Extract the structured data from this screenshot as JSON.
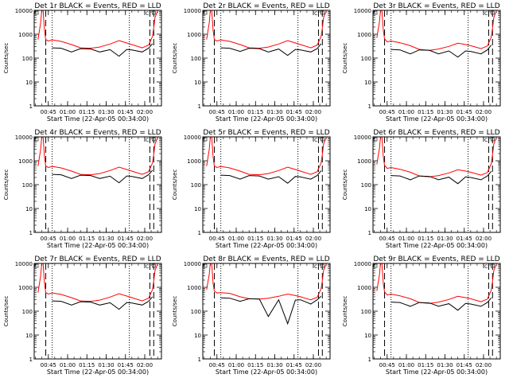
{
  "chart_data": {
    "type": "line",
    "layout": "3x3 grid",
    "ylabel": "Counts/sec",
    "xlabel": "Start Time (22-Apr-05 00:34:00)",
    "x_start": "00:34:00",
    "x_end": "02:13:00",
    "x_ticks": [
      "00:45",
      "01:00",
      "01:15",
      "01:30",
      "01:45",
      "02:00"
    ],
    "y_scale": "log",
    "ylim": [
      1,
      10000
    ],
    "y_ticks": [
      "1",
      "10",
      "100",
      "1000",
      "10000"
    ],
    "colors": {
      "events": "#000000",
      "lld": "#ff0000"
    },
    "markers": {
      "dashed": [
        "00:43",
        "02:04",
        "02:07"
      ],
      "dotted": [
        "00:48",
        "01:48"
      ],
      "small_box_label": "C"
    },
    "time": [
      "00:37",
      "00:39",
      "00:40",
      "00:41",
      "00:42",
      "00:43",
      "00:45",
      "00:48",
      "00:55",
      "01:03",
      "01:10",
      "01:18",
      "01:25",
      "01:33",
      "01:40",
      "01:46",
      "01:50",
      "01:58",
      "02:03",
      "02:06",
      "02:07",
      "02:08",
      "02:10",
      "02:11"
    ],
    "panels": [
      {
        "title": "Det 1r BLACK = Events, RED = LLD",
        "lld": [
          600,
          3000,
          12000,
          9000,
          1500,
          600,
          520,
          580,
          500,
          370,
          270,
          260,
          290,
          390,
          540,
          430,
          370,
          270,
          350,
          800,
          1800,
          5000,
          9500,
          12000
        ],
        "events": [
          null,
          null,
          null,
          null,
          null,
          null,
          null,
          270,
          260,
          180,
          250,
          240,
          180,
          225,
          120,
          230,
          220,
          180,
          260,
          400,
          null,
          null,
          null,
          null
        ]
      },
      {
        "title": "Det 2r BLACK = Events, RED = LLD",
        "lld": [
          600,
          3000,
          12000,
          9000,
          1500,
          600,
          520,
          580,
          500,
          370,
          270,
          260,
          290,
          390,
          540,
          430,
          370,
          270,
          350,
          800,
          1800,
          5000,
          9500,
          12000
        ],
        "events": [
          null,
          null,
          null,
          null,
          null,
          null,
          null,
          270,
          260,
          190,
          260,
          250,
          180,
          240,
          130,
          230,
          220,
          180,
          250,
          400,
          null,
          null,
          null,
          null
        ]
      },
      {
        "title": "Det 3r BLACK = Events, RED = LLD",
        "lld": [
          700,
          3300,
          12000,
          9000,
          1500,
          650,
          480,
          520,
          440,
          330,
          230,
          210,
          240,
          310,
          420,
          370,
          330,
          250,
          320,
          750,
          1800,
          5000,
          9500,
          12000
        ],
        "events": [
          null,
          null,
          null,
          null,
          null,
          null,
          null,
          230,
          220,
          150,
          220,
          210,
          150,
          200,
          110,
          200,
          190,
          150,
          220,
          350,
          null,
          null,
          null,
          null
        ]
      },
      {
        "title": "Det 4r BLACK = Events, RED = LLD",
        "lld": [
          600,
          3000,
          12000,
          9000,
          1500,
          600,
          520,
          580,
          500,
          370,
          270,
          260,
          290,
          390,
          540,
          430,
          370,
          270,
          350,
          800,
          1800,
          5000,
          9500,
          12000
        ],
        "events": [
          null,
          null,
          null,
          null,
          null,
          null,
          null,
          270,
          260,
          180,
          250,
          240,
          180,
          225,
          120,
          230,
          220,
          180,
          260,
          400,
          null,
          null,
          null,
          null
        ]
      },
      {
        "title": "Det 5r BLACK = Events, RED = LLD",
        "lld": [
          600,
          3000,
          12000,
          9000,
          1500,
          600,
          520,
          580,
          500,
          370,
          270,
          260,
          290,
          390,
          540,
          430,
          370,
          270,
          350,
          800,
          1800,
          5000,
          9500,
          12000
        ],
        "events": [
          null,
          null,
          null,
          null,
          null,
          null,
          null,
          250,
          240,
          170,
          240,
          230,
          170,
          215,
          115,
          220,
          210,
          170,
          240,
          380,
          null,
          null,
          null,
          null
        ]
      },
      {
        "title": "Det 6r BLACK = Events, RED = LLD",
        "lld": [
          700,
          3300,
          12000,
          9000,
          1500,
          650,
          480,
          520,
          440,
          330,
          230,
          210,
          240,
          310,
          420,
          370,
          330,
          250,
          320,
          750,
          1800,
          5000,
          9500,
          12000
        ],
        "events": [
          null,
          null,
          null,
          null,
          null,
          null,
          null,
          240,
          230,
          160,
          230,
          220,
          160,
          205,
          110,
          210,
          200,
          160,
          230,
          360,
          null,
          null,
          null,
          null
        ]
      },
      {
        "title": "Det 7r BLACK = Events, RED = LLD",
        "lld": [
          600,
          3000,
          12000,
          9000,
          1500,
          600,
          520,
          580,
          500,
          370,
          270,
          260,
          290,
          390,
          540,
          430,
          370,
          270,
          350,
          800,
          1800,
          5000,
          9500,
          12000
        ],
        "events": [
          null,
          null,
          null,
          null,
          null,
          null,
          null,
          270,
          260,
          180,
          250,
          240,
          180,
          225,
          120,
          230,
          220,
          180,
          260,
          400,
          null,
          null,
          null,
          null
        ]
      },
      {
        "title": "Det 8r BLACK = Events, RED = LLD",
        "lld": [
          800,
          3500,
          12000,
          9000,
          1500,
          700,
          580,
          600,
          560,
          400,
          330,
          320,
          350,
          420,
          520,
          450,
          400,
          300,
          380,
          850,
          1900,
          5200,
          9500,
          12000
        ],
        "events": [
          null,
          null,
          null,
          null,
          null,
          null,
          null,
          360,
          350,
          260,
          330,
          320,
          60,
          300,
          30,
          290,
          300,
          200,
          300,
          420,
          null,
          null,
          null,
          null
        ]
      },
      {
        "title": "Det 9r BLACK = Events, RED = LLD",
        "lld": [
          700,
          3300,
          12000,
          9000,
          1500,
          650,
          480,
          520,
          440,
          330,
          230,
          210,
          240,
          310,
          420,
          370,
          330,
          250,
          320,
          750,
          1800,
          5000,
          9500,
          12000
        ],
        "events": [
          null,
          null,
          null,
          null,
          null,
          null,
          null,
          240,
          230,
          160,
          230,
          220,
          160,
          205,
          110,
          210,
          200,
          160,
          230,
          360,
          null,
          null,
          null,
          null
        ]
      }
    ]
  }
}
